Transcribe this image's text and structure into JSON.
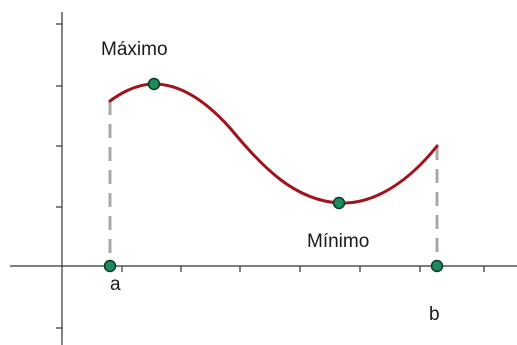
{
  "labels": {
    "maximum": "Máximo",
    "minimum": "Mínimo",
    "point_a": "a",
    "point_b": "b"
  },
  "colors": {
    "curve": "#a0141c",
    "point_fill": "#1f8a5e",
    "point_stroke": "#0b3b28",
    "axis": "#333333",
    "dashed": "#a8a8a8"
  }
}
